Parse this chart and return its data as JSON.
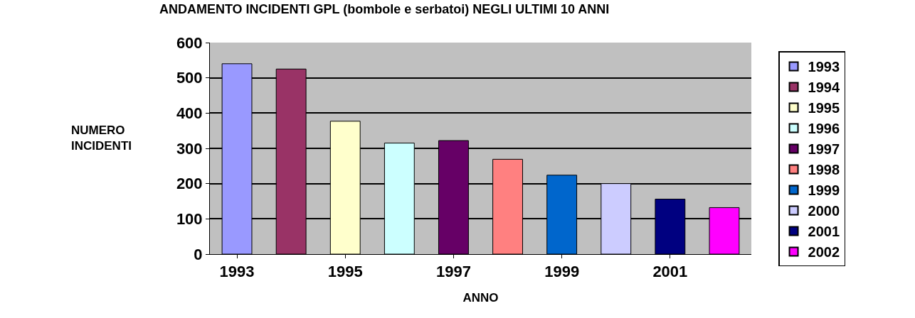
{
  "chart_data": {
    "type": "bar",
    "title": "ANDAMENTO INCIDENTI GPL (bombole e serbatoi) NEGLI ULTIMI 10 ANNI",
    "xlabel": "ANNO",
    "ylabel": "NUMERO INCIDENTI",
    "categories": [
      "1993",
      null,
      "1995",
      null,
      "1997",
      null,
      "1999",
      null,
      "2001",
      null
    ],
    "series": [
      {
        "name": "1993",
        "color": "#9999ff",
        "values": [
          540,
          null,
          null,
          null,
          null,
          null,
          null,
          null,
          null,
          null
        ]
      },
      {
        "name": "1994",
        "color": "#993366",
        "values": [
          null,
          525,
          null,
          null,
          null,
          null,
          null,
          null,
          null,
          null
        ]
      },
      {
        "name": "1995",
        "color": "#ffffcc",
        "values": [
          null,
          null,
          377,
          null,
          null,
          null,
          null,
          null,
          null,
          null
        ]
      },
      {
        "name": "1996",
        "color": "#ccffff",
        "values": [
          null,
          null,
          null,
          315,
          null,
          null,
          null,
          null,
          null,
          null
        ]
      },
      {
        "name": "1997",
        "color": "#660066",
        "values": [
          null,
          null,
          null,
          null,
          322,
          null,
          null,
          null,
          null,
          null
        ]
      },
      {
        "name": "1998",
        "color": "#ff8080",
        "values": [
          null,
          null,
          null,
          null,
          null,
          269,
          null,
          null,
          null,
          null
        ]
      },
      {
        "name": "1999",
        "color": "#0066cc",
        "values": [
          null,
          null,
          null,
          null,
          null,
          null,
          224,
          null,
          null,
          null
        ]
      },
      {
        "name": "2000",
        "color": "#ccccff",
        "values": [
          null,
          null,
          null,
          null,
          null,
          null,
          null,
          200,
          null,
          null
        ]
      },
      {
        "name": "2001",
        "color": "#000080",
        "values": [
          null,
          null,
          null,
          null,
          null,
          null,
          null,
          null,
          156,
          null
        ]
      },
      {
        "name": "2002",
        "color": "#ff00ff",
        "values": [
          null,
          null,
          null,
          null,
          null,
          null,
          null,
          null,
          null,
          132
        ]
      }
    ],
    "ylim": [
      0,
      600
    ],
    "yticks": [
      0,
      100,
      200,
      300,
      400,
      500,
      600
    ],
    "grid": "y",
    "legend": "right"
  }
}
